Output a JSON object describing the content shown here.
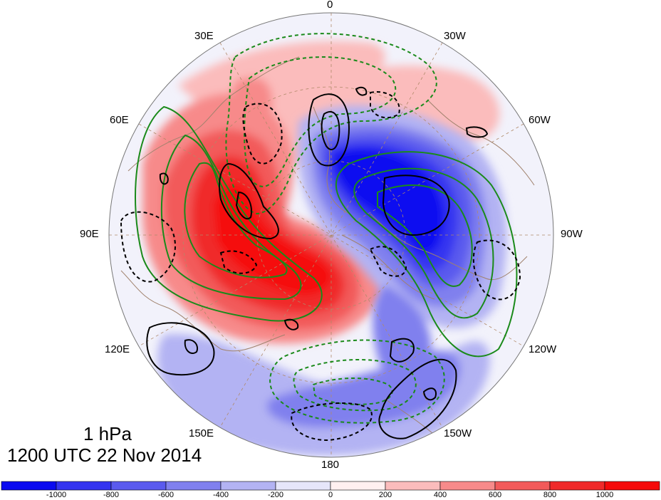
{
  "title": {
    "level": "1 hPa",
    "datetime": "1200 UTC 22 Nov 2014"
  },
  "longitude_labels": [
    "0",
    "30W",
    "60W",
    "90W",
    "120W",
    "150W",
    "180",
    "150E",
    "120E",
    "90E",
    "60E",
    "30E"
  ],
  "colorbar": {
    "tick_labels": [
      "-1000",
      "-800",
      "-600",
      "-400",
      "-200",
      "0",
      "200",
      "400",
      "600",
      "800",
      "1000"
    ],
    "colors": [
      "#0a0af0",
      "#3434f0",
      "#5a5aee",
      "#8080ee",
      "#b3b3f3",
      "#e6e6fa",
      "#fff0f0",
      "#fbbcbc",
      "#f78a8a",
      "#f25a5a",
      "#f02a2a",
      "#f50a0a"
    ]
  },
  "colors": {
    "land_outline": "#a0826d",
    "grid": "#b08a6a",
    "contour_green": "#1a8a1a",
    "contour_black": "#000000"
  }
}
